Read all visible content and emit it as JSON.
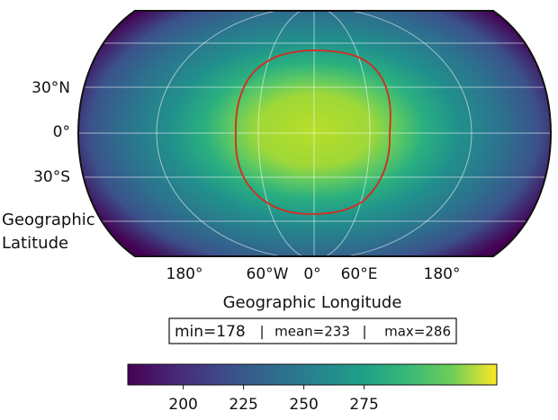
{
  "map": {
    "latitude_labels": [
      "30°N",
      "0°",
      "30°S"
    ],
    "latitude_title": [
      "Geographic",
      "Latitude"
    ],
    "longitude_labels": [
      "180°",
      "60°W",
      "0°",
      "60°E",
      "180°"
    ],
    "longitude_title": "Geographic Longitude",
    "stats": [
      "min=178",
      "mean=233",
      "max=286"
    ],
    "stats_separator": "|"
  },
  "colorbar": {
    "range": [
      177,
      330
    ],
    "ticks": [
      200,
      225,
      250,
      275
    ]
  }
}
